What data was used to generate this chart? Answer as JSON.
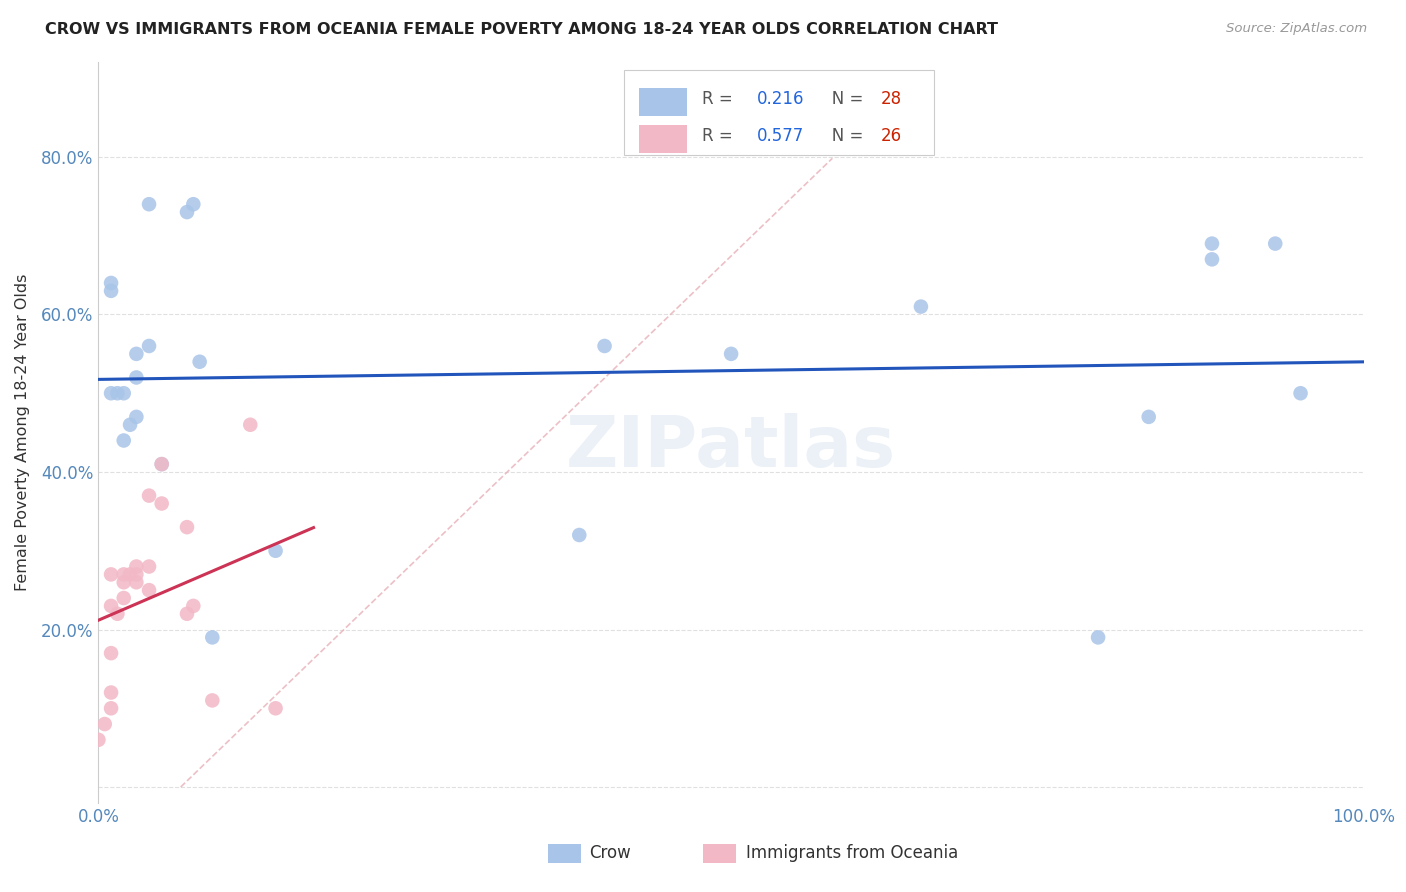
{
  "title": "CROW VS IMMIGRANTS FROM OCEANIA FEMALE POVERTY AMONG 18-24 YEAR OLDS CORRELATION CHART",
  "source": "Source: ZipAtlas.com",
  "ylabel": "Female Poverty Among 18-24 Year Olds",
  "xlim": [
    0.0,
    1.0
  ],
  "ylim": [
    -0.02,
    0.92
  ],
  "crow_color": "#a8c4e8",
  "oceania_color": "#f2b8c6",
  "crow_line_color": "#2255bb",
  "oceania_line_color": "#cc3355",
  "crow_R": 0.216,
  "crow_N": 28,
  "oceania_R": 0.577,
  "oceania_N": 26,
  "crow_scatter_x": [
    0.01,
    0.01,
    0.01,
    0.015,
    0.02,
    0.02,
    0.025,
    0.03,
    0.03,
    0.03,
    0.04,
    0.04,
    0.05,
    0.07,
    0.075,
    0.08,
    0.09,
    0.14,
    0.38,
    0.4,
    0.65,
    0.79,
    0.83,
    0.88,
    0.88,
    0.93,
    0.95,
    0.5
  ],
  "crow_scatter_y": [
    0.63,
    0.64,
    0.5,
    0.5,
    0.44,
    0.5,
    0.46,
    0.47,
    0.52,
    0.55,
    0.56,
    0.74,
    0.41,
    0.73,
    0.74,
    0.54,
    0.19,
    0.3,
    0.32,
    0.56,
    0.61,
    0.19,
    0.47,
    0.67,
    0.69,
    0.69,
    0.5,
    0.55
  ],
  "oceania_scatter_x": [
    0.0,
    0.005,
    0.01,
    0.01,
    0.01,
    0.01,
    0.01,
    0.015,
    0.02,
    0.02,
    0.02,
    0.025,
    0.03,
    0.03,
    0.03,
    0.04,
    0.04,
    0.04,
    0.05,
    0.05,
    0.07,
    0.075,
    0.09,
    0.12,
    0.14,
    0.07
  ],
  "oceania_scatter_y": [
    0.06,
    0.08,
    0.1,
    0.12,
    0.17,
    0.23,
    0.27,
    0.22,
    0.24,
    0.26,
    0.27,
    0.27,
    0.26,
    0.27,
    0.28,
    0.25,
    0.28,
    0.37,
    0.36,
    0.41,
    0.22,
    0.23,
    0.11,
    0.46,
    0.1,
    0.33
  ],
  "watermark": "ZIPatlas",
  "background_color": "#ffffff",
  "grid_color": "#e0e0e0"
}
